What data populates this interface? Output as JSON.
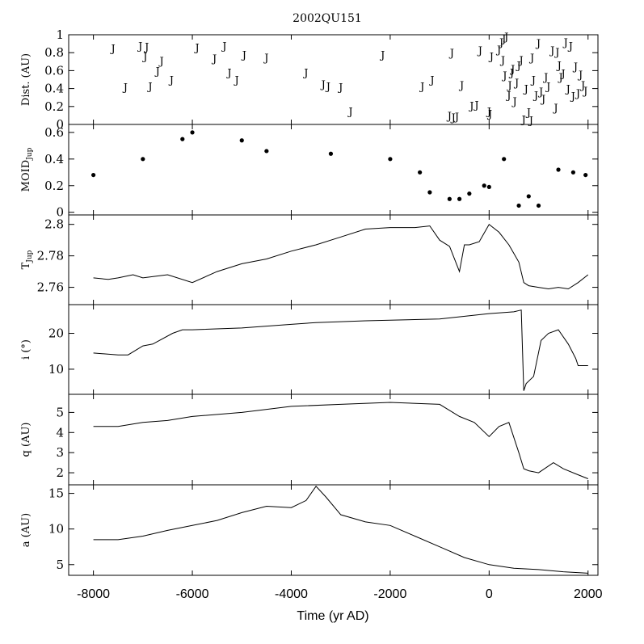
{
  "title": "2002QU151",
  "xlabel": "Time (yr AD)",
  "x_ticks": [
    -8000,
    -6000,
    -4000,
    -2000,
    0,
    2000
  ],
  "xlim": [
    -8500,
    2200
  ],
  "chart_data": [
    {
      "id": "dist",
      "type": "scatter",
      "marker": "J",
      "ylabel": "Dist. (AU)",
      "ylim": [
        0,
        1
      ],
      "yticks": [
        0,
        0.2,
        0.4,
        0.6,
        0.8,
        1
      ],
      "ytick_labels": [
        "0",
        "0.2",
        "0.4",
        "0.6",
        "0.8",
        "1"
      ],
      "x": [
        -7600,
        -7350,
        -7050,
        -6950,
        -6920,
        -6850,
        -6700,
        -6620,
        -6420,
        -5900,
        -5550,
        -5350,
        -5250,
        -5100,
        -4950,
        -4500,
        -3700,
        -3350,
        -3250,
        -3000,
        -2800,
        -2150,
        -1350,
        -1150,
        -800,
        -750,
        -720,
        -650,
        -550,
        -350,
        -250,
        -180,
        0,
        20,
        50,
        200,
        250,
        280,
        300,
        320,
        350,
        400,
        420,
        460,
        480,
        520,
        560,
        600,
        650,
        700,
        750,
        800,
        850,
        870,
        900,
        950,
        1000,
        1050,
        1100,
        1150,
        1200,
        1280,
        1350,
        1380,
        1420,
        1450,
        1500,
        1550,
        1600,
        1650,
        1700,
        1750,
        1800,
        1850,
        1900,
        1950
      ],
      "y": [
        0.85,
        0.42,
        0.88,
        0.76,
        0.87,
        0.43,
        0.6,
        0.71,
        0.5,
        0.86,
        0.74,
        0.88,
        0.58,
        0.5,
        0.78,
        0.75,
        0.58,
        0.45,
        0.43,
        0.42,
        0.15,
        0.78,
        0.43,
        0.5,
        0.1,
        0.8,
        0.08,
        0.09,
        0.44,
        0.21,
        0.22,
        0.83,
        0.15,
        0.12,
        0.76,
        0.84,
        0.92,
        0.72,
        0.96,
        0.55,
        0.98,
        0.33,
        0.44,
        0.58,
        0.62,
        0.26,
        0.47,
        0.66,
        0.72,
        0.06,
        0.4,
        0.14,
        0.05,
        0.75,
        0.5,
        0.33,
        0.91,
        0.37,
        0.29,
        0.53,
        0.43,
        0.83,
        0.19,
        0.81,
        0.66,
        0.53,
        0.57,
        0.92,
        0.4,
        0.88,
        0.32,
        0.65,
        0.35,
        0.56,
        0.44,
        0.38
      ]
    },
    {
      "id": "moid",
      "type": "scatter",
      "marker": "dot",
      "ylabel": "MOID_Jup",
      "ylim": [
        -0.02,
        0.66
      ],
      "yticks": [
        0,
        0.2,
        0.4,
        0.6
      ],
      "ytick_labels": [
        "0",
        "0.2",
        "0.4",
        "0.6"
      ],
      "x": [
        -8000,
        -7000,
        -6200,
        -6000,
        -5000,
        -4500,
        -3200,
        -2000,
        -1400,
        -1200,
        -800,
        -600,
        -400,
        -100,
        0,
        300,
        600,
        800,
        1000,
        1400,
        1700,
        1950
      ],
      "y": [
        0.28,
        0.4,
        0.55,
        0.6,
        0.54,
        0.46,
        0.44,
        0.4,
        0.3,
        0.15,
        0.1,
        0.1,
        0.14,
        0.2,
        0.19,
        0.4,
        0.05,
        0.12,
        0.05,
        0.32,
        0.3,
        0.28
      ]
    },
    {
      "id": "tjup",
      "type": "line",
      "ylabel": "T_Jup",
      "ylim": [
        2.749,
        2.806
      ],
      "yticks": [
        2.76,
        2.78,
        2.8
      ],
      "ytick_labels": [
        "2.76",
        "2.78",
        "2.8"
      ],
      "x": [
        -8000,
        -7700,
        -7500,
        -7200,
        -7000,
        -6500,
        -6000,
        -5500,
        -5000,
        -4500,
        -4000,
        -3500,
        -3000,
        -2500,
        -2000,
        -1500,
        -1200,
        -1000,
        -800,
        -600,
        -500,
        -400,
        -200,
        0,
        200,
        400,
        600,
        700,
        800,
        1000,
        1200,
        1400,
        1600,
        1800,
        2000
      ],
      "y": [
        2.766,
        2.765,
        2.766,
        2.768,
        2.766,
        2.768,
        2.763,
        2.77,
        2.775,
        2.778,
        2.783,
        2.787,
        2.792,
        2.797,
        2.798,
        2.798,
        2.799,
        2.79,
        2.786,
        2.77,
        2.787,
        2.787,
        2.789,
        2.8,
        2.795,
        2.787,
        2.776,
        2.763,
        2.761,
        2.76,
        2.759,
        2.76,
        2.759,
        2.763,
        2.768
      ]
    },
    {
      "id": "incl",
      "type": "line",
      "ylabel": "i (°)",
      "ylim": [
        3,
        28
      ],
      "yticks": [
        10,
        20
      ],
      "ytick_labels": [
        "10",
        "20"
      ],
      "x": [
        -8000,
        -7500,
        -7300,
        -7000,
        -6800,
        -6400,
        -6200,
        -6000,
        -5000,
        -4000,
        -3500,
        -2500,
        -1000,
        0,
        500,
        650,
        700,
        750,
        900,
        1050,
        1200,
        1400,
        1600,
        1750,
        1800,
        2000
      ],
      "y": [
        14.5,
        14,
        14,
        16.5,
        17,
        20,
        21,
        21,
        21.5,
        22.5,
        23,
        23.5,
        24,
        25.5,
        26,
        26.5,
        4,
        6,
        8,
        18,
        20,
        21,
        17,
        13,
        11,
        11
      ]
    },
    {
      "id": "q",
      "type": "line",
      "ylabel": "q (AU)",
      "ylim": [
        1.4,
        5.9
      ],
      "yticks": [
        2,
        3,
        4,
        5
      ],
      "ytick_labels": [
        "2",
        "3",
        "4",
        "5"
      ],
      "x": [
        -8000,
        -7500,
        -7000,
        -6500,
        -6000,
        -5000,
        -4000,
        -3000,
        -2000,
        -1000,
        -600,
        -300,
        0,
        200,
        400,
        600,
        700,
        800,
        1000,
        1300,
        1500,
        1800,
        2000
      ],
      "y": [
        4.3,
        4.3,
        4.5,
        4.6,
        4.8,
        5.0,
        5.3,
        5.4,
        5.5,
        5.4,
        4.8,
        4.5,
        3.8,
        4.3,
        4.5,
        3.0,
        2.2,
        2.1,
        2.0,
        2.5,
        2.2,
        1.9,
        1.7
      ]
    },
    {
      "id": "a",
      "type": "line",
      "ylabel": "a (AU)",
      "ylim": [
        3.5,
        16.2
      ],
      "yticks": [
        5,
        10,
        15
      ],
      "ytick_labels": [
        "5",
        "10",
        "15"
      ],
      "x": [
        -8000,
        -7500,
        -7000,
        -6500,
        -6000,
        -5500,
        -5000,
        -4500,
        -4000,
        -3700,
        -3500,
        -3300,
        -3000,
        -2500,
        -2000,
        -1500,
        -1000,
        -500,
        0,
        500,
        1000,
        1500,
        2000
      ],
      "y": [
        8.5,
        8.5,
        9.0,
        9.8,
        10.5,
        11.2,
        12.3,
        13.2,
        13.0,
        14.0,
        16.0,
        14.5,
        12.0,
        11.0,
        10.5,
        9.0,
        7.5,
        6.0,
        5.0,
        4.5,
        4.3,
        4.0,
        3.8
      ]
    }
  ]
}
